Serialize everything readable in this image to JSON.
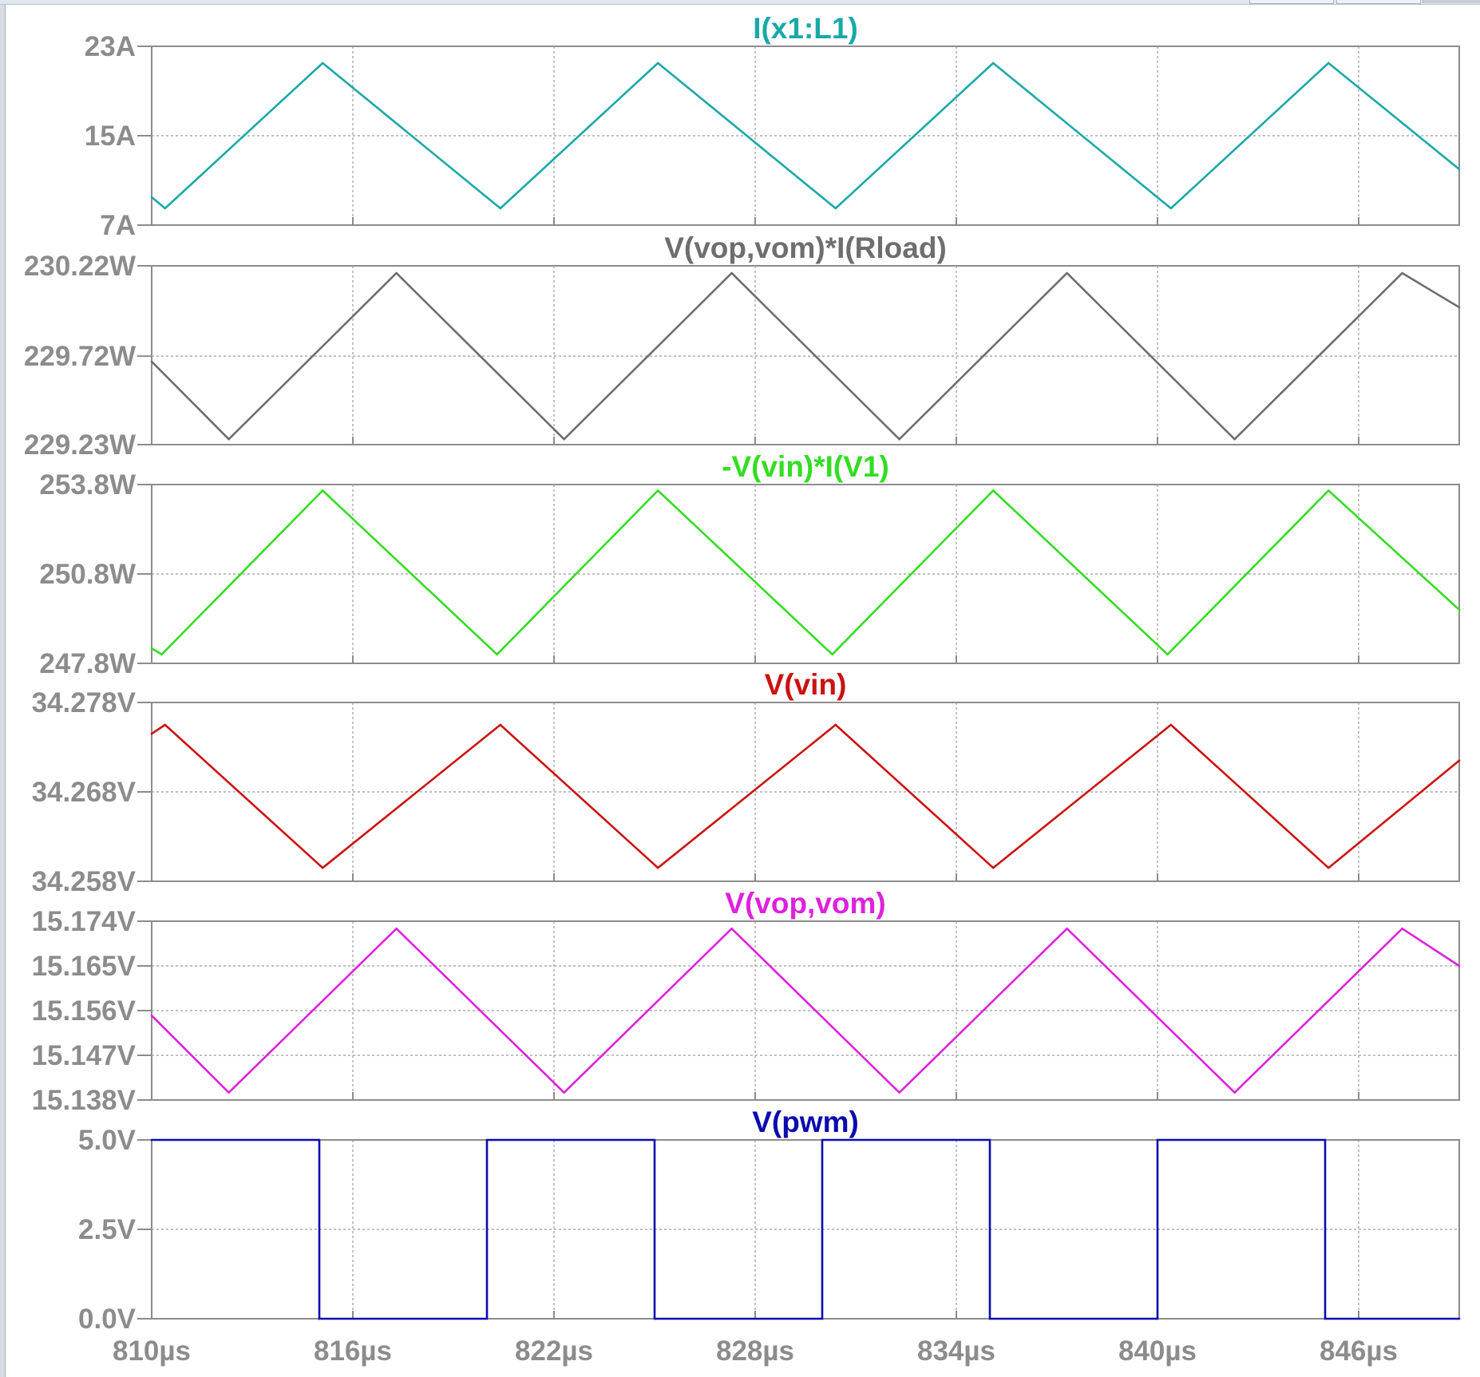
{
  "chart_data": {
    "type": "line",
    "x_unit": "µs",
    "xlim": [
      810,
      849
    ],
    "x_ticks": [
      "810µs",
      "816µs",
      "822µs",
      "828µs",
      "834µs",
      "840µs",
      "846µs"
    ],
    "x_tick_values": [
      810,
      816,
      822,
      828,
      834,
      840,
      846
    ],
    "grid": true,
    "panels": [
      {
        "title": "I(x1:L1)",
        "color": "#1aa8a8",
        "ylim": [
          7,
          23
        ],
        "y_ticks": [
          "23A",
          "15A",
          "7A"
        ],
        "y_tick_values": [
          23,
          15,
          7
        ],
        "x": [
          810,
          810.4,
          815.1,
          820.4,
          825.1,
          830.4,
          835.1,
          840.4,
          845.1,
          849
        ],
        "y": [
          9.5,
          8.5,
          21.5,
          8.5,
          21.5,
          8.5,
          21.5,
          8.5,
          21.5,
          12
        ]
      },
      {
        "title": "V(vop,vom)*I(Rload)",
        "color": "#6e6e6e",
        "ylim": [
          229.23,
          230.22
        ],
        "y_ticks": [
          "230.22W",
          "229.72W",
          "229.23W"
        ],
        "y_tick_values": [
          230.22,
          229.72,
          229.23
        ],
        "x": [
          810,
          812.3,
          817.3,
          822.3,
          827.3,
          832.3,
          837.3,
          842.3,
          847.3,
          849
        ],
        "y": [
          229.69,
          229.26,
          230.18,
          229.26,
          230.18,
          229.26,
          230.18,
          229.26,
          230.18,
          229.99
        ]
      },
      {
        "title": "-V(vin)*I(V1)",
        "color": "#33dd22",
        "ylim": [
          247.8,
          253.8
        ],
        "y_ticks": [
          "253.8W",
          "250.8W",
          "247.8W"
        ],
        "y_tick_values": [
          253.8,
          250.8,
          247.8
        ],
        "x": [
          810,
          810.3,
          815.1,
          820.3,
          825.1,
          830.3,
          835.1,
          840.3,
          845.1,
          849
        ],
        "y": [
          248.3,
          248.1,
          253.6,
          248.1,
          253.6,
          248.1,
          253.6,
          248.1,
          253.6,
          249.6
        ]
      },
      {
        "title": "V(vin)",
        "color": "#cc1111",
        "ylim": [
          34.258,
          34.278
        ],
        "y_ticks": [
          "34.278V",
          "34.268V",
          "34.258V"
        ],
        "y_tick_values": [
          34.278,
          34.268,
          34.258
        ],
        "x": [
          810,
          810.4,
          815.1,
          820.4,
          825.1,
          830.4,
          835.1,
          840.4,
          845.1,
          849
        ],
        "y": [
          34.2745,
          34.2755,
          34.2595,
          34.2755,
          34.2595,
          34.2755,
          34.2595,
          34.2755,
          34.2595,
          34.2715
        ]
      },
      {
        "title": "V(vop,vom)",
        "color": "#dd22dd",
        "ylim": [
          15.138,
          15.174
        ],
        "y_ticks": [
          "15.174V",
          "15.165V",
          "15.156V",
          "15.147V",
          "15.138V"
        ],
        "y_tick_values": [
          15.174,
          15.165,
          15.156,
          15.147,
          15.138
        ],
        "x": [
          810,
          812.3,
          817.3,
          822.3,
          827.3,
          832.3,
          837.3,
          842.3,
          847.3,
          849
        ],
        "y": [
          15.155,
          15.1395,
          15.1725,
          15.1395,
          15.1725,
          15.1395,
          15.1725,
          15.1395,
          15.1725,
          15.165
        ]
      },
      {
        "title": "V(pwm)",
        "color": "#0b0bb0",
        "ylim": [
          0,
          5
        ],
        "y_ticks": [
          "5.0V",
          "2.5V",
          "0.0V"
        ],
        "y_tick_values": [
          5,
          2.5,
          0
        ],
        "x": [
          810,
          815,
          815,
          820,
          820,
          825,
          825,
          830,
          830,
          835,
          835,
          840,
          840,
          845,
          845,
          849
        ],
        "y": [
          5,
          5,
          0,
          0,
          5,
          5,
          0,
          0,
          5,
          5,
          0,
          0,
          5,
          5,
          0,
          0
        ]
      }
    ]
  }
}
